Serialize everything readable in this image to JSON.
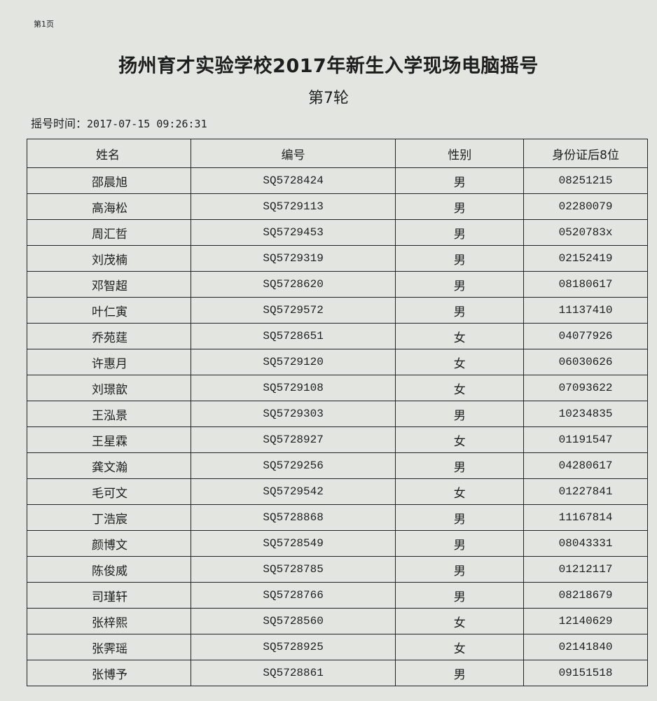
{
  "page_label": "第1页",
  "title": "扬州育才实验学校2017年新生入学现场电脑摇号",
  "round": "第7轮",
  "draw_time_label": "摇号时间：",
  "draw_time": "2017-07-15 09:26:31",
  "table": {
    "headers": [
      "姓名",
      "编号",
      "性别",
      "身份证后8位"
    ],
    "rows": [
      [
        "邵晨旭",
        "SQ5728424",
        "男",
        "08251215"
      ],
      [
        "高海松",
        "SQ5729113",
        "男",
        "02280079"
      ],
      [
        "周汇哲",
        "SQ5729453",
        "男",
        "0520783x"
      ],
      [
        "刘茂楠",
        "SQ5729319",
        "男",
        "02152419"
      ],
      [
        "邓智超",
        "SQ5728620",
        "男",
        "08180617"
      ],
      [
        "叶仁寅",
        "SQ5729572",
        "男",
        "11137410"
      ],
      [
        "乔苑莛",
        "SQ5728651",
        "女",
        "04077926"
      ],
      [
        "许惠月",
        "SQ5729120",
        "女",
        "06030626"
      ],
      [
        "刘璟歆",
        "SQ5729108",
        "女",
        "07093622"
      ],
      [
        "王泓景",
        "SQ5729303",
        "男",
        "10234835"
      ],
      [
        "王星霖",
        "SQ5728927",
        "女",
        "01191547"
      ],
      [
        "龚文瀚",
        "SQ5729256",
        "男",
        "04280617"
      ],
      [
        "毛可文",
        "SQ5729542",
        "女",
        "01227841"
      ],
      [
        "丁浩宸",
        "SQ5728868",
        "男",
        "11167814"
      ],
      [
        "颜博文",
        "SQ5728549",
        "男",
        "08043331"
      ],
      [
        "陈俊威",
        "SQ5728785",
        "男",
        "01212117"
      ],
      [
        "司瑾轩",
        "SQ5728766",
        "男",
        "08218679"
      ],
      [
        "张梓熙",
        "SQ5728560",
        "女",
        "12140629"
      ],
      [
        "张霁瑶",
        "SQ5728925",
        "女",
        "02141840"
      ],
      [
        "张博予",
        "SQ5728861",
        "男",
        "09151518"
      ]
    ]
  }
}
